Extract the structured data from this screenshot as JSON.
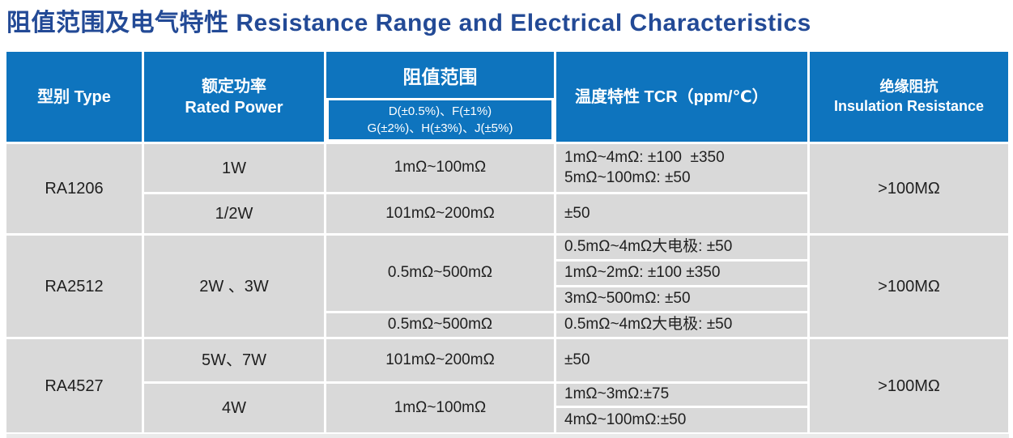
{
  "page": {
    "title": "阻值范围及电气特性 Resistance Range and Electrical Characteristics"
  },
  "colors": {
    "title_blue": "#234a96",
    "header_blue": "#0e74be",
    "cell_gray": "#d9d9d9",
    "body_text": "#1f1f1f"
  },
  "table": {
    "header": {
      "type": "型别 Type",
      "rated_power": "额定功率\nRated Power",
      "resistance_range": "阻值范围",
      "tolerance_codes": "D(±0.5%)、F(±1%)\nG(±2%)、H(±3%)、J(±5%)",
      "tcr": "温度特性 TCR（ppm/℃）",
      "insulation": "绝缘阻抗\nInsulation Resistance"
    },
    "rows": {
      "ra1206": {
        "type": "RA1206",
        "power_1": "1W",
        "range_1": "1mΩ~100mΩ",
        "tcr_1": "1mΩ~4mΩ: ±100  ±350\n5mΩ~100mΩ: ±50",
        "power_2": "1/2W",
        "range_2": "101mΩ~200mΩ",
        "tcr_2": "±50",
        "insulation": ">100MΩ"
      },
      "ra2512": {
        "type": "RA2512",
        "power": "2W 、3W",
        "range_a": "0.5mΩ~500mΩ",
        "tcr_1": "0.5mΩ~4mΩ大电极: ±50",
        "tcr_2": "1mΩ~2mΩ: ±100 ±350",
        "tcr_3": "3mΩ~500mΩ: ±50",
        "range_b": "0.5mΩ~500mΩ",
        "tcr_4": "0.5mΩ~4mΩ大电极: ±50",
        "insulation": ">100MΩ"
      },
      "ra4527": {
        "type": "RA4527",
        "power_1": "5W、7W",
        "range_1": "101mΩ~200mΩ",
        "tcr_1": "±50",
        "power_2": "4W",
        "range_2": "1mΩ~100mΩ",
        "tcr_2a": "1mΩ~3mΩ:±75",
        "tcr_2b": "4mΩ~100mΩ:±50",
        "insulation": ">100MΩ"
      }
    }
  }
}
